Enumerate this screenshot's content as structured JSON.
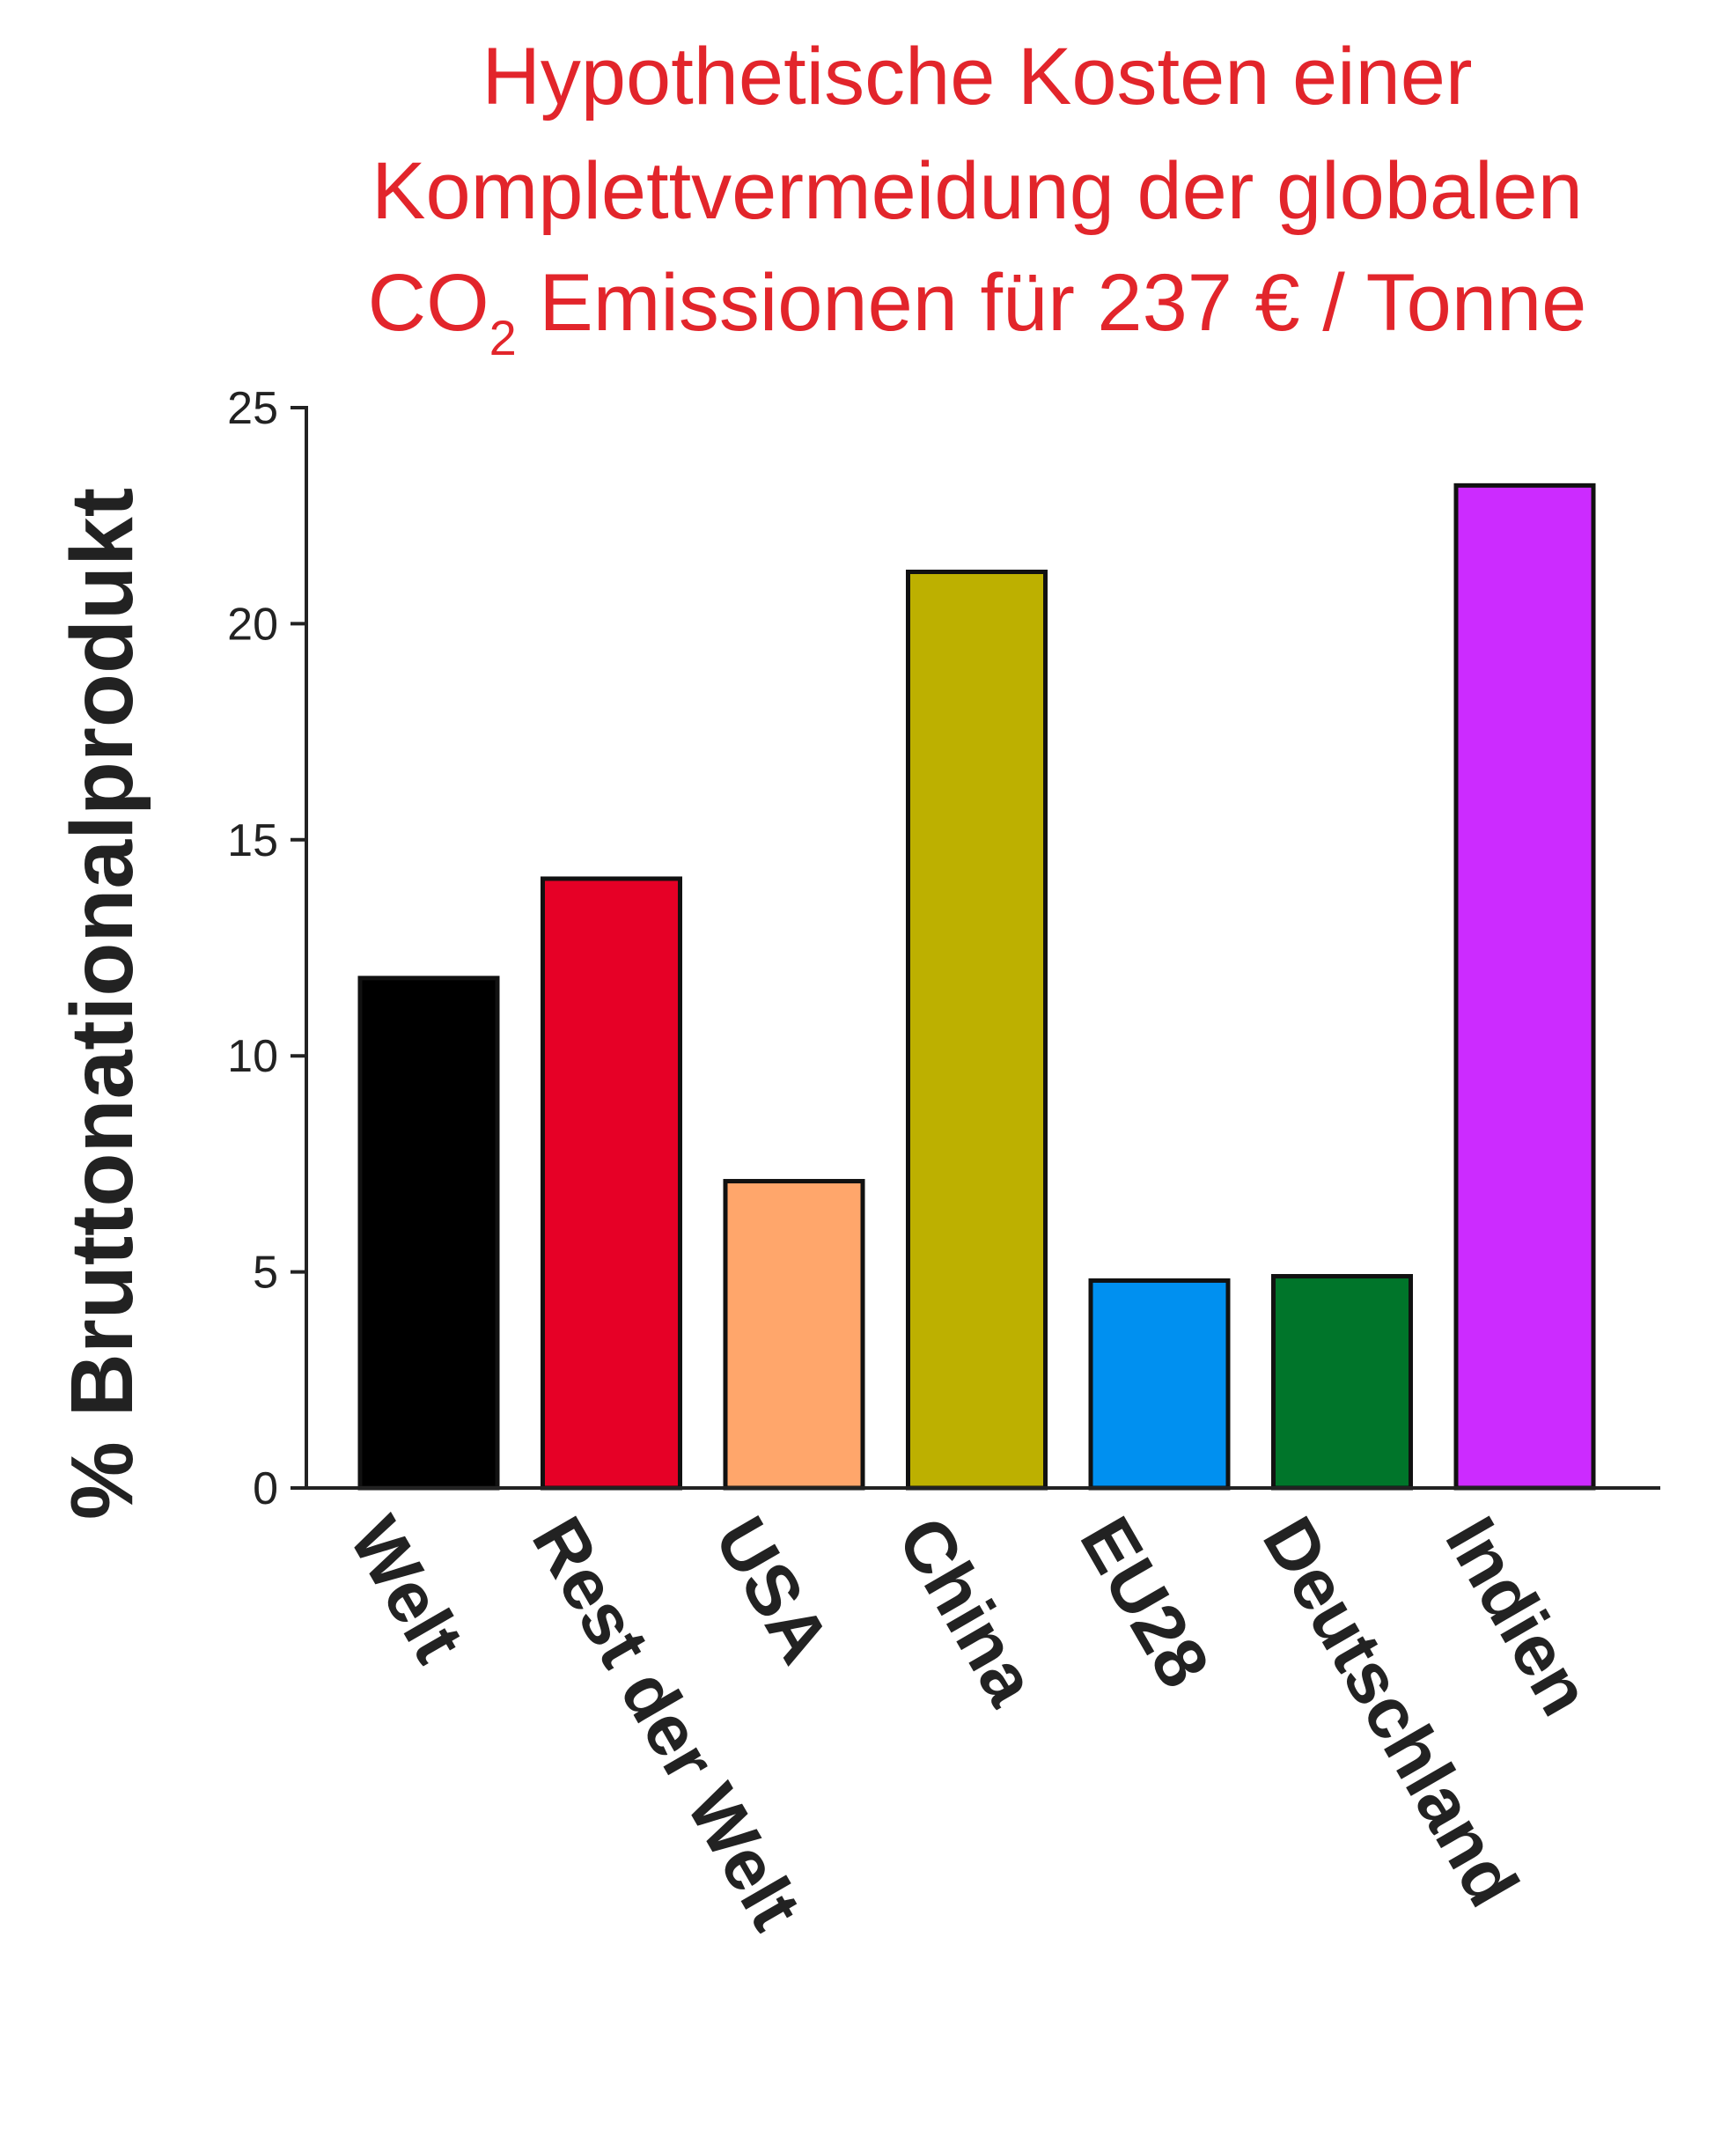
{
  "chart_data": {
    "type": "bar",
    "title": {
      "line1": "Hypothetische Kosten einer",
      "line2": "Komplettvermeidung der globalen",
      "line3_prefix": "CO",
      "line3_subscript": "2",
      "line3_suffix": " Emissionen für 237 € / Tonne"
    },
    "xlabel": "",
    "ylabel": "% Bruttonationalprodukt",
    "ylim": [
      0,
      25
    ],
    "yticks": [
      "0",
      "5",
      "10",
      "15",
      "20",
      "25"
    ],
    "categories": [
      "Welt",
      "Rest der Welt",
      "USA",
      "China",
      "EU28",
      "Deutschland",
      "Indien"
    ],
    "values": [
      11.8,
      14.1,
      7.1,
      21.2,
      4.8,
      4.9,
      23.2
    ],
    "colors": [
      "#000000",
      "#e60026",
      "#ffa66b",
      "#bdb000",
      "#0090f0",
      "#00752a",
      "#cc2bff"
    ],
    "grid": false,
    "title_color": "#e2252b"
  }
}
